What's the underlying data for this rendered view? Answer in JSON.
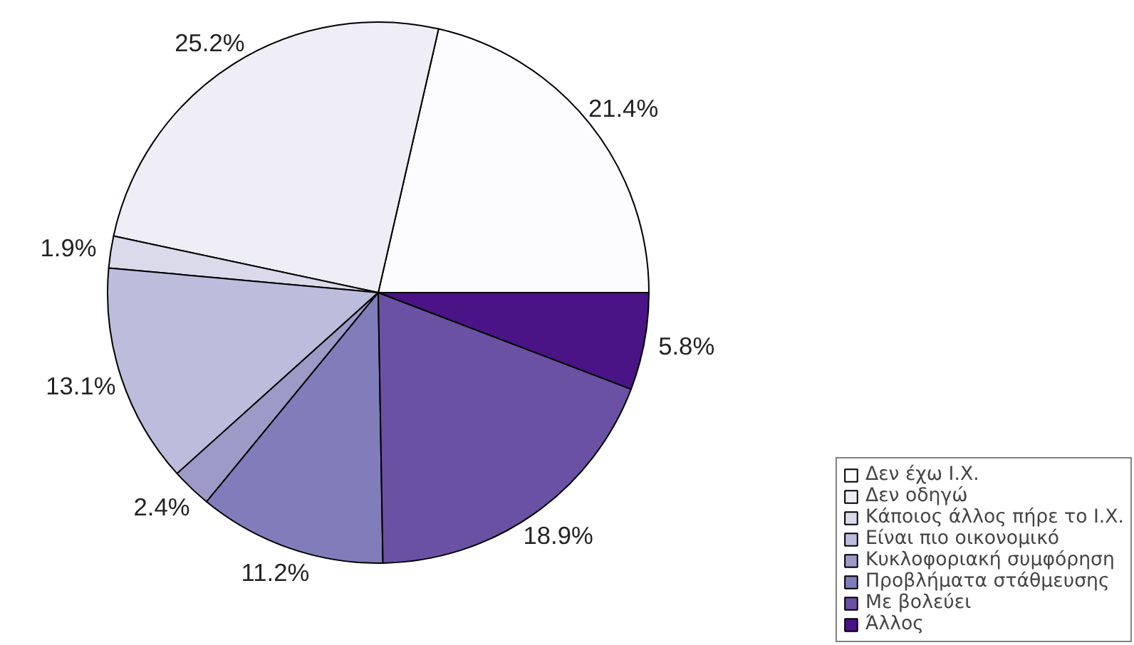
{
  "chart_data": {
    "type": "pie",
    "categories": [
      "Δεν έχω Ι.Χ.",
      "Δεν οδηγώ",
      "Κάποιος άλλος πήρε το Ι.Χ.",
      "Είναι πιο οικονομικό",
      "Κυκλοφοριακή συμφόρηση",
      "Προβλήματα στάθμευσης",
      "Με βολεύει",
      "Άλλος"
    ],
    "values": [
      21.4,
      25.2,
      1.9,
      13.1,
      2.4,
      11.2,
      18.9,
      5.8
    ],
    "value_labels": [
      "21.4%",
      "25.2%",
      "1.9%",
      "13.1%",
      "2.4%",
      "11.2%",
      "18.9%",
      "5.8%"
    ],
    "colors": [
      "#fcfbfd",
      "#efedf5",
      "#dadaeb",
      "#bcbddc",
      "#9e9ac8",
      "#807dba",
      "#6a51a3",
      "#4a1486"
    ],
    "legend": "bottom right"
  }
}
